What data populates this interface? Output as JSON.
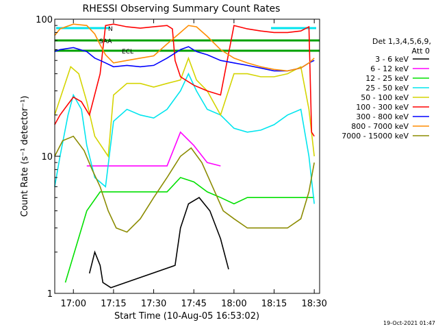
{
  "chart_data": {
    "type": "line",
    "title": "RHESSI Observing Summary Count Rates",
    "xlabel": "Start Time (10-Aug-05 16:53:02)",
    "ylabel": "Count Rate (s⁻¹ detector⁻¹)",
    "y_scale": "log",
    "ylim": [
      1,
      100
    ],
    "xlim": [
      "16:53:02",
      "18:32:00"
    ],
    "x_ticks": [
      "17:00",
      "17:15",
      "17:30",
      "17:45",
      "18:00",
      "18:15",
      "18:30"
    ],
    "y_ticks": [
      "1",
      "10",
      "100"
    ],
    "legend_header": [
      "Det 1,3,4,5,6,9,",
      "Att 0"
    ],
    "legend_position": "right",
    "timestamp": "19-Oct-2021 01:47",
    "flags": [
      {
        "label": "N",
        "color": "#00e5ee"
      },
      {
        "label": "SAA",
        "color": "#00a000"
      },
      {
        "label": "ECL",
        "color": "#00a000"
      }
    ],
    "series": [
      {
        "name": "3 - 6 keV",
        "color": "#000000",
        "x": [
          "17:06",
          "17:08",
          "17:10",
          "17:11",
          "17:14",
          "17:38",
          "17:40",
          "17:43",
          "17:47",
          "17:51",
          "17:55",
          "17:58"
        ],
        "y": [
          1.4,
          2.0,
          1.6,
          1.2,
          1.1,
          1.6,
          3.0,
          4.5,
          5.0,
          4.0,
          2.5,
          1.5
        ]
      },
      {
        "name": "6 - 12 keV",
        "color": "#ff00ff",
        "x": [
          "17:05",
          "17:10",
          "17:15",
          "17:20",
          "17:25",
          "17:30",
          "17:35",
          "17:40",
          "17:45",
          "17:50",
          "17:55"
        ],
        "y": [
          8.5,
          8.5,
          8.5,
          8.5,
          8.5,
          8.5,
          8.5,
          15.0,
          12.0,
          9.0,
          8.5
        ]
      },
      {
        "name": "12 - 25 keV",
        "color": "#00e000",
        "x": [
          "16:57",
          "17:05",
          "17:10",
          "17:15",
          "17:20",
          "17:25",
          "17:30",
          "17:35",
          "17:40",
          "17:45",
          "17:50",
          "17:55",
          "18:00",
          "18:05",
          "18:10",
          "18:15",
          "18:20",
          "18:25",
          "18:30"
        ],
        "y": [
          1.2,
          4.0,
          5.5,
          5.5,
          5.5,
          5.5,
          5.5,
          5.5,
          7.0,
          6.5,
          5.5,
          5.0,
          4.5,
          5.0,
          5.0,
          5.0,
          5.0,
          5.0,
          5.0
        ]
      },
      {
        "name": "25 - 50 keV",
        "color": "#00e5ee",
        "x": [
          "16:53",
          "16:55",
          "16:58",
          "17:00",
          "17:03",
          "17:05",
          "17:08",
          "17:12",
          "17:15",
          "17:20",
          "17:25",
          "17:30",
          "17:35",
          "17:40",
          "17:43",
          "17:46",
          "17:50",
          "17:55",
          "18:00",
          "18:05",
          "18:10",
          "18:15",
          "18:20",
          "18:25",
          "18:28",
          "18:30"
        ],
        "y": [
          6.0,
          10.0,
          20.0,
          28.0,
          22.0,
          12.0,
          7.0,
          6.0,
          18.0,
          22.0,
          20.0,
          19.0,
          22.0,
          30.0,
          40.0,
          30.0,
          22.0,
          20.0,
          16.0,
          15.0,
          15.5,
          17.0,
          20.0,
          22.0,
          10.0,
          4.5
        ]
      },
      {
        "name": "50 - 100 keV",
        "color": "#d4d400",
        "x": [
          "16:53",
          "16:56",
          "16:59",
          "17:02",
          "17:05",
          "17:08",
          "17:13",
          "17:15",
          "17:20",
          "17:25",
          "17:30",
          "17:35",
          "17:40",
          "17:43",
          "17:46",
          "17:50",
          "17:55",
          "18:00",
          "18:05",
          "18:10",
          "18:15",
          "18:20",
          "18:25",
          "18:28",
          "18:30"
        ],
        "y": [
          20.0,
          30.0,
          45.0,
          40.0,
          25.0,
          14.0,
          10.0,
          28.0,
          34.0,
          34.0,
          32.0,
          34.0,
          36.0,
          52.0,
          36.0,
          30.0,
          20.0,
          40.0,
          40.0,
          38.0,
          38.0,
          40.0,
          45.0,
          22.0,
          10.0
        ]
      },
      {
        "name": "100 - 300 keV",
        "color": "#ff0000",
        "x": [
          "16:53",
          "16:55",
          "16:58",
          "17:00",
          "17:03",
          "17:06",
          "17:10",
          "17:12",
          "17:15",
          "17:20",
          "17:25",
          "17:30",
          "17:35",
          "17:37",
          "17:38",
          "17:40",
          "17:45",
          "17:50",
          "17:55",
          "18:00",
          "18:05",
          "18:10",
          "18:15",
          "18:20",
          "18:25",
          "18:28",
          "18:29",
          "18:30"
        ],
        "y": [
          17.0,
          20.0,
          24.0,
          27.0,
          25.0,
          20.0,
          40.0,
          90.0,
          92.0,
          88.0,
          86.0,
          88.0,
          90.0,
          85.0,
          50.0,
          38.0,
          33.0,
          30.0,
          28.0,
          90.0,
          85.0,
          82.0,
          80.0,
          80.0,
          82.0,
          88.0,
          15.0,
          14.0
        ]
      },
      {
        "name": "300 - 800 keV",
        "color": "#0000ff",
        "x": [
          "16:53",
          "16:55",
          "17:00",
          "17:05",
          "17:08",
          "17:10",
          "17:12",
          "17:15",
          "17:20",
          "17:25",
          "17:30",
          "17:35",
          "17:40",
          "17:43",
          "17:46",
          "17:50",
          "17:55",
          "18:00",
          "18:05",
          "18:10",
          "18:15",
          "18:20",
          "18:25",
          "18:28",
          "18:30"
        ],
        "y": [
          58.0,
          60.0,
          62.0,
          58.0,
          52.0,
          50.0,
          48.0,
          45.0,
          46.0,
          45.0,
          46.0,
          52.0,
          60.0,
          63.0,
          58.0,
          55.0,
          50.0,
          48.0,
          46.0,
          44.0,
          42.0,
          42.0,
          44.0,
          48.0,
          50.0
        ]
      },
      {
        "name": "800 - 7000 keV",
        "color": "#ff8c00",
        "x": [
          "16:53",
          "16:55",
          "17:00",
          "17:05",
          "17:08",
          "17:10",
          "17:12",
          "17:15",
          "17:20",
          "17:25",
          "17:30",
          "17:35",
          "17:40",
          "17:43",
          "17:46",
          "17:50",
          "17:55",
          "18:00",
          "18:05",
          "18:10",
          "18:15",
          "18:20",
          "18:25",
          "18:28",
          "18:30"
        ],
        "y": [
          76.0,
          85.0,
          92.0,
          90.0,
          78.0,
          65.0,
          55.0,
          48.0,
          50.0,
          52.0,
          54.0,
          66.0,
          80.0,
          90.0,
          88.0,
          75.0,
          60.0,
          52.0,
          48.0,
          45.0,
          43.0,
          42.0,
          44.0,
          48.0,
          52.0
        ]
      },
      {
        "name": "7000 - 15000 keV",
        "color": "#8b8b00",
        "x": [
          "16:53",
          "16:56",
          "17:00",
          "17:04",
          "17:07",
          "17:10",
          "17:13",
          "17:16",
          "17:20",
          "17:25",
          "17:30",
          "17:35",
          "17:40",
          "17:44",
          "17:48",
          "17:52",
          "17:56",
          "18:00",
          "18:05",
          "18:10",
          "18:15",
          "18:20",
          "18:25",
          "18:28",
          "18:30"
        ],
        "y": [
          10.0,
          13.0,
          14.0,
          11.0,
          8.0,
          6.0,
          4.0,
          3.0,
          2.8,
          3.5,
          5.0,
          7.0,
          10.0,
          11.5,
          9.0,
          6.0,
          4.0,
          3.5,
          3.0,
          3.0,
          3.0,
          3.0,
          3.5,
          5.5,
          9.0
        ]
      }
    ]
  }
}
